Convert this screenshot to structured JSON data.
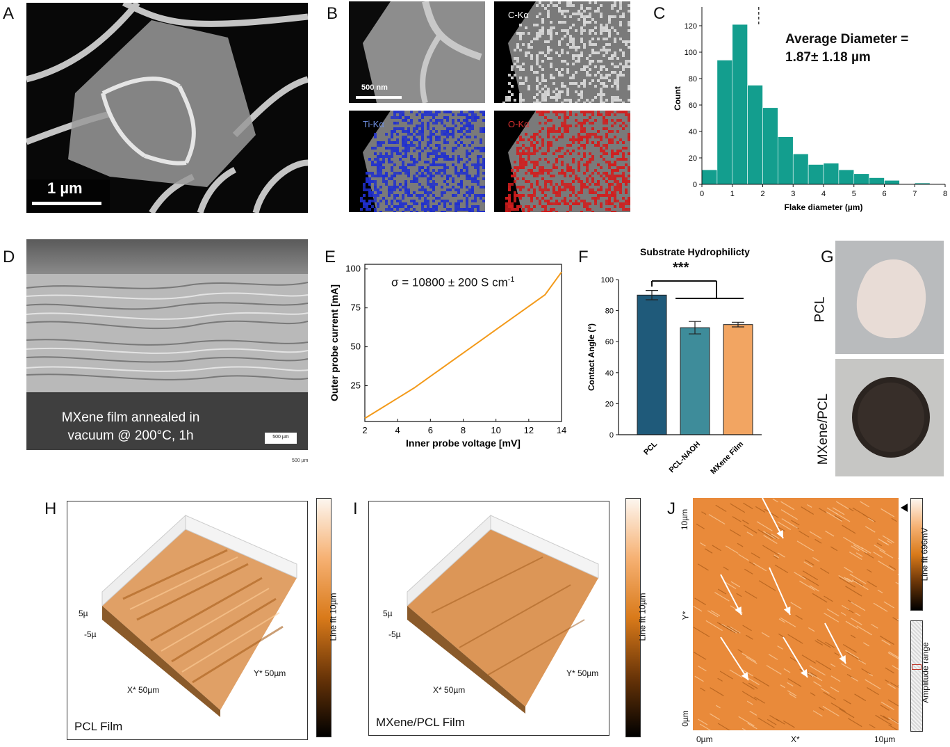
{
  "panels": {
    "A": {
      "letter": "A",
      "scale_label": "1 µm"
    },
    "B": {
      "letter": "B",
      "scale_label": "500 nm",
      "maps": [
        "C-Kα",
        "Ti-Kα",
        "O-Kα"
      ]
    },
    "C": {
      "letter": "C",
      "annotation_line1": "Average Diameter =",
      "annotation_line2": "1.87± 1.18 µm"
    },
    "D": {
      "letter": "D",
      "caption_line1": "MXene film annealed in",
      "caption_line2": "vacuum @ 200°C, 1h",
      "scale_label": "500 µm",
      "scale_label_small": "500 µm"
    },
    "E": {
      "letter": "E",
      "equation": "σ = 10800 ± 200 S cm",
      "equation_sup": "-1"
    },
    "F": {
      "letter": "F",
      "significance": "***"
    },
    "G": {
      "letter": "G",
      "label_top": "PCL",
      "label_bottom": "MXene/PCL"
    },
    "H": {
      "letter": "H",
      "caption": "PCL Film",
      "z_top": "5µ",
      "z_bottom": "-5µ",
      "x_label": "X* 50µm",
      "y_label": "Y* 50µm",
      "colorbar_label": "Line fit 10µm"
    },
    "I": {
      "letter": "I",
      "caption": "MXene/PCL Film",
      "z_top": "5µ",
      "z_bottom": "-5µ",
      "x_label": "X* 50µm",
      "y_label": "Y* 50µm",
      "colorbar_label": "Line fit 10µm"
    },
    "J": {
      "letter": "J",
      "y_top": "10µm",
      "y_mid": "Y*",
      "y_bottom": "0µm",
      "x_left": "0µm",
      "x_mid": "X*",
      "x_right": "10µm",
      "colorbar_label": "Line fit 696mV",
      "range_label": "Amplitude range"
    }
  },
  "colors": {
    "teal": "#139e8e",
    "dark_blue": "#1f5a7a",
    "mid_teal": "#3e8c9a",
    "orange_bar": "#f2a562",
    "line_orange": "#f39a1a"
  },
  "chart_data": [
    {
      "panel": "C",
      "type": "bar",
      "xlabel": "Flake diameter (µm)",
      "ylabel": "Count",
      "bin_edges": [
        0,
        0.5,
        1,
        1.5,
        2,
        2.5,
        3,
        3.5,
        4,
        4.5,
        5,
        5.5,
        6,
        6.5,
        7,
        7.5,
        8
      ],
      "values": [
        11,
        94,
        121,
        75,
        58,
        36,
        23,
        15,
        16,
        11,
        8,
        5,
        3,
        0,
        1,
        0
      ],
      "mean_line_x": 1.87,
      "xlim": [
        0,
        8
      ],
      "ylim": [
        0,
        130
      ],
      "xticks": [
        0,
        1,
        2,
        3,
        4,
        5,
        6,
        7,
        8
      ],
      "yticks": [
        0,
        20,
        40,
        60,
        80,
        100,
        120
      ]
    },
    {
      "panel": "E",
      "type": "line",
      "xlabel": "Inner probe voltage [mV]",
      "ylabel": "Outer probe current [mA]",
      "x": [
        2,
        3,
        4,
        5,
        6,
        7,
        8,
        9,
        10,
        11,
        12,
        13,
        14
      ],
      "y": [
        4,
        10.5,
        17,
        23.5,
        31,
        38.5,
        46,
        53.5,
        61,
        68.5,
        76,
        83.5,
        98
      ],
      "xlim": [
        2,
        14
      ],
      "ylim": [
        2,
        103
      ],
      "xticks": [
        2,
        4,
        6,
        8,
        10,
        12,
        14
      ],
      "yticks": [
        25,
        50,
        75,
        100
      ]
    },
    {
      "panel": "F",
      "type": "bar",
      "title": "Substrate Hydrophilicty",
      "ylabel": "Contact Angle (°)",
      "categories": [
        "PCL",
        "PCL-NAOH",
        "MXene Film"
      ],
      "values": [
        90,
        69,
        71
      ],
      "errors": [
        3,
        4,
        1.5
      ],
      "ylim": [
        0,
        100
      ],
      "yticks": [
        0,
        20,
        40,
        60,
        80,
        100
      ]
    }
  ]
}
